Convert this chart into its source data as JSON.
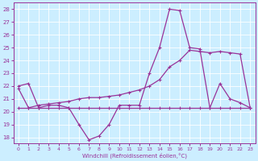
{
  "xlabel": "Windchill (Refroidissement éolien,°C)",
  "background_color": "#cceeff",
  "grid_color": "#ffffff",
  "line_color": "#993399",
  "xlim": [
    -0.5,
    23.5
  ],
  "ylim": [
    17.5,
    28.5
  ],
  "yticks": [
    18,
    19,
    20,
    21,
    22,
    23,
    24,
    25,
    26,
    27,
    28
  ],
  "xticks": [
    0,
    1,
    2,
    3,
    4,
    5,
    6,
    7,
    8,
    9,
    10,
    11,
    12,
    13,
    14,
    15,
    16,
    17,
    18,
    19,
    20,
    21,
    22,
    23
  ],
  "line1_x": [
    0,
    1,
    2,
    3,
    4,
    5,
    6,
    7,
    8,
    9,
    10,
    11,
    12,
    13,
    14,
    15,
    16,
    17,
    18,
    19,
    20,
    21,
    22,
    23
  ],
  "line1_y": [
    22.0,
    22.2,
    20.3,
    20.5,
    20.5,
    20.3,
    19.0,
    17.8,
    18.1,
    19.0,
    20.5,
    20.5,
    20.5,
    23.0,
    25.0,
    28.0,
    27.9,
    25.0,
    24.9,
    20.3,
    22.2,
    21.0,
    20.7,
    20.3
  ],
  "line2_x": [
    0,
    1,
    2,
    3,
    4,
    5,
    6,
    7,
    8,
    9,
    10,
    11,
    12,
    13,
    14,
    15,
    16,
    17,
    18,
    19,
    20,
    21,
    22,
    23
  ],
  "line2_y": [
    21.8,
    20.3,
    20.5,
    20.6,
    20.7,
    20.8,
    21.0,
    21.1,
    21.1,
    21.2,
    21.3,
    21.5,
    21.7,
    22.0,
    22.5,
    23.5,
    24.0,
    24.8,
    24.7,
    24.6,
    24.7,
    24.6,
    24.5,
    20.3
  ],
  "line3_x": [
    0,
    1,
    2,
    3,
    4,
    5,
    6,
    7,
    8,
    9,
    10,
    11,
    12,
    13,
    14,
    15,
    16,
    17,
    18,
    19,
    20,
    21,
    22,
    23
  ],
  "line3_y": [
    20.3,
    20.3,
    20.3,
    20.3,
    20.3,
    20.3,
    20.3,
    20.3,
    20.3,
    20.3,
    20.3,
    20.3,
    20.3,
    20.3,
    20.3,
    20.3,
    20.3,
    20.3,
    20.3,
    20.3,
    20.3,
    20.3,
    20.3,
    20.3
  ],
  "marker": "+"
}
